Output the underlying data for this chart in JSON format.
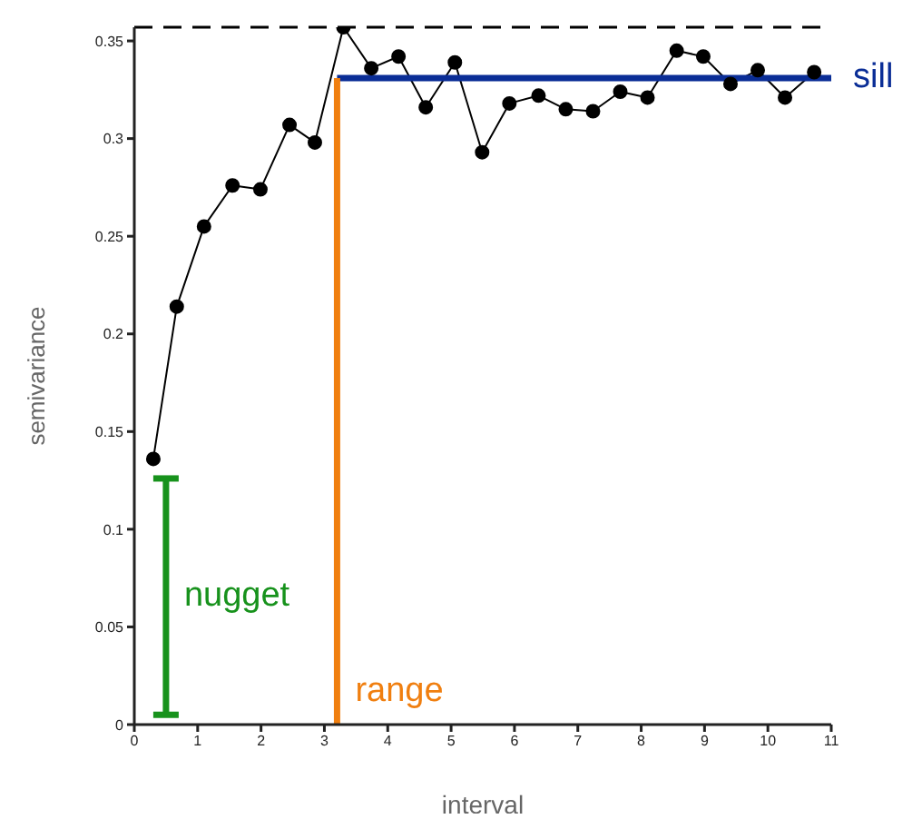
{
  "chart_data": {
    "type": "line",
    "xlabel": "interval",
    "ylabel": "semivariance",
    "xlim": [
      0,
      11
    ],
    "xticks": [
      0,
      1,
      2,
      3,
      4,
      5,
      6,
      7,
      8,
      9,
      10,
      11
    ],
    "ylim": [
      0,
      0.357
    ],
    "yticks": [
      0,
      0.05,
      0.1,
      0.15,
      0.2,
      0.25,
      0.3,
      0.35
    ],
    "grid": false,
    "series": [
      {
        "color": "#000000",
        "marker": "circle",
        "x": [
          0.3,
          0.67,
          1.1,
          1.55,
          1.99,
          2.45,
          2.85,
          3.3,
          3.74,
          4.17,
          4.6,
          5.06,
          5.49,
          5.92,
          6.38,
          6.81,
          7.24,
          7.67,
          8.1,
          8.56,
          8.98,
          9.41,
          9.84,
          10.27,
          10.73
        ],
        "values": [
          0.136,
          0.214,
          0.255,
          0.276,
          0.274,
          0.307,
          0.298,
          0.357,
          0.336,
          0.342,
          0.316,
          0.339,
          0.293,
          0.318,
          0.322,
          0.315,
          0.314,
          0.324,
          0.321,
          0.345,
          0.342,
          0.328,
          0.335,
          0.321,
          0.334
        ]
      },
      {
        "name": "sill",
        "color": "#0a2d96",
        "marker": "none",
        "x": [
          3.2,
          11
        ],
        "values": [
          0.331,
          0.331
        ]
      },
      {
        "name": "range",
        "color": "#f07f10",
        "marker": "none",
        "x": [
          3.2,
          3.2
        ],
        "values": [
          0.331,
          0
        ]
      },
      {
        "name": "nugget",
        "color": "#17921c",
        "marker": "none",
        "x": [
          0.5,
          0.5
        ],
        "values": [
          0.126,
          0.005
        ]
      }
    ],
    "ref_lines": [
      {
        "axis": "y",
        "value": 0.357,
        "color": "#000000",
        "line_style": "dashed"
      }
    ]
  }
}
